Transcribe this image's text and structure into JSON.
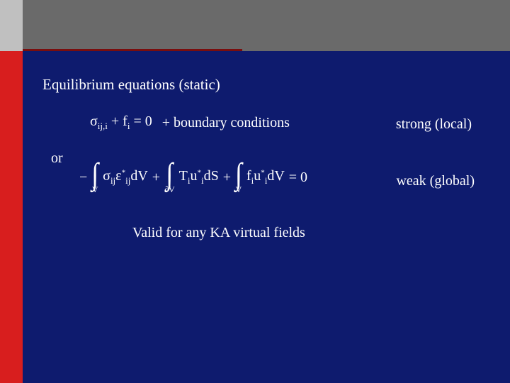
{
  "colors": {
    "left_bar_top": "#c0c0c0",
    "left_bar_bottom": "#d81e1e",
    "top_band": "#6a6a6a",
    "main_bg": "#0e1b6e",
    "underline": "#7a0e0e",
    "text": "#ffffff"
  },
  "heading": "Equilibrium equations (static)",
  "eq1": {
    "sigma": "σ",
    "sigma_sub": "ij,i",
    "plus": " + ",
    "f": "f",
    "f_sub": "i",
    "eq_zero": " = 0"
  },
  "bc_text": "+ boundary conditions",
  "strong_label": "strong (local)",
  "or_label": "or",
  "eq2": {
    "minus": "−",
    "int_V": "V",
    "int_dV_label": "∂V",
    "term1_a": "σ",
    "term1_a_sub": "ij",
    "term1_b": "ε",
    "term1_b_sup": "*",
    "term1_b_sub": "ij",
    "term1_d": "dV",
    "plus": " + ",
    "term2_a": "T",
    "term2_a_sub": "i",
    "term2_b": "u",
    "term2_b_sup": "*",
    "term2_b_sub": "i",
    "term2_d": "dS",
    "term3_a": "f",
    "term3_a_sub": "i",
    "term3_b": "u",
    "term3_b_sup": "*",
    "term3_b_sub": "i",
    "term3_d": "dV",
    "eq_zero": " = 0"
  },
  "weak_label": "weak (global)",
  "valid_text": "Valid for any KA virtual fields"
}
